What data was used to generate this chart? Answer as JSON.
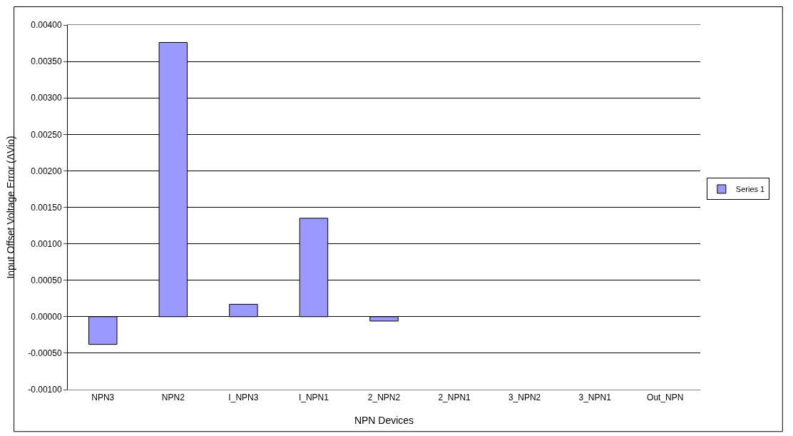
{
  "chart_data": {
    "type": "bar",
    "xlabel": "NPN Devices",
    "ylabel": "Input Offset Voltage Error (ΔVio)",
    "categories": [
      "NPN3",
      "NPN2",
      "I_NPN3",
      "I_NPN1",
      "2_NPN2",
      "2_NPN1",
      "3_NPN2",
      "3_NPN1",
      "Out_NPN"
    ],
    "series": [
      {
        "name": "Series 1",
        "color": "#9999ff",
        "values": [
          -0.00038,
          0.00376,
          0.00017,
          0.00135,
          -6e-05,
          null,
          null,
          null,
          null
        ]
      }
    ],
    "ylim": [
      -0.001,
      0.004
    ],
    "yticks": [
      {
        "value": -0.001,
        "label": "-0.00100"
      },
      {
        "value": -0.0005,
        "label": "-0.00050"
      },
      {
        "value": 0,
        "label": "0.00000"
      },
      {
        "value": 0.0005,
        "label": "0.00050"
      },
      {
        "value": 0.001,
        "label": "0.00100"
      },
      {
        "value": 0.0015,
        "label": "0.00150"
      },
      {
        "value": 0.002,
        "label": "0.00200"
      },
      {
        "value": 0.0025,
        "label": "0.00250"
      },
      {
        "value": 0.003,
        "label": "0.00300"
      },
      {
        "value": 0.0035,
        "label": "0.00350"
      },
      {
        "value": 0.004,
        "label": "0.00400"
      }
    ],
    "grid": "y",
    "legend": "right"
  }
}
